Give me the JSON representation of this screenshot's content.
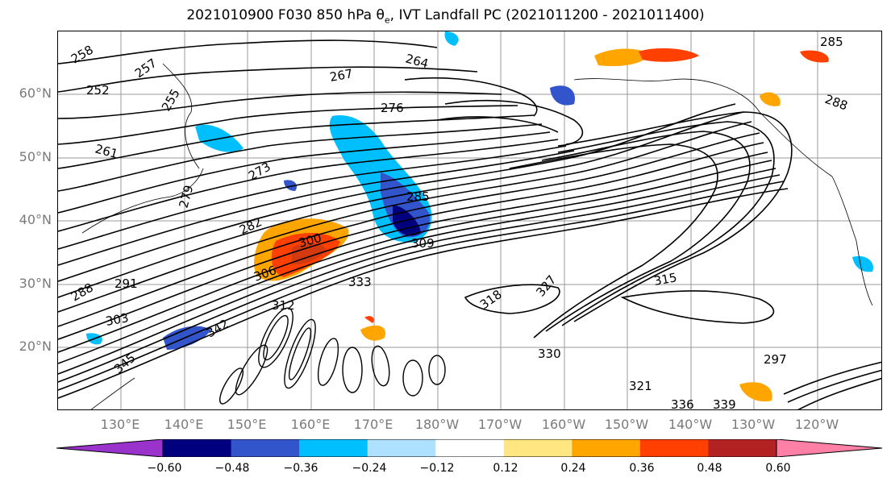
{
  "title": "2021010900 F030 850 hPa θ",
  "title_sub": "e",
  "title_rest": ", IVT Landfall PC (2021011200 - 2021011400)",
  "lat_labels": [
    "60°N",
    "50°N",
    "40°N",
    "30°N",
    "20°N"
  ],
  "lon_labels": [
    "130°E",
    "140°E",
    "150°E",
    "160°E",
    "170°E",
    "180°W",
    "170°W",
    "160°W",
    "150°W",
    "140°W",
    "130°W",
    "120°W"
  ],
  "colorbar": {
    "ticks": [
      "−0.60",
      "−0.48",
      "−0.36",
      "−0.24",
      "−0.12",
      "0.12",
      "0.24",
      "0.36",
      "0.48",
      "0.60"
    ],
    "colors": [
      "#9933cc",
      "#00007f",
      "#3355cc",
      "#00bfff",
      "#aee0ff",
      "#ffffff",
      "#ffe680",
      "#ffa500",
      "#ff4000",
      "#b22222",
      "#ff80a6",
      "#ff80ff"
    ]
  },
  "contour_labels": [
    "258",
    "252",
    "257",
    "255",
    "264",
    "267",
    "276",
    "261",
    "273",
    "279",
    "285",
    "282",
    "291",
    "288",
    "309",
    "303",
    "306",
    "300",
    "333",
    "318",
    "315",
    "327",
    "312",
    "336",
    "339",
    "330",
    "321",
    "345",
    "342",
    "285",
    "288",
    "297"
  ],
  "chart_data": {
    "type": "map",
    "variable": "850 hPa θe contours (K), IVT Landfall PC shading",
    "contour_interval": 3,
    "shading_levels": [
      -0.6,
      -0.48,
      -0.36,
      -0.24,
      -0.12,
      0.12,
      0.24,
      0.36,
      0.48,
      0.6
    ],
    "lat_range": [
      "10°N",
      "70°N"
    ],
    "lon_range": [
      "120°E",
      "110°W"
    ]
  }
}
